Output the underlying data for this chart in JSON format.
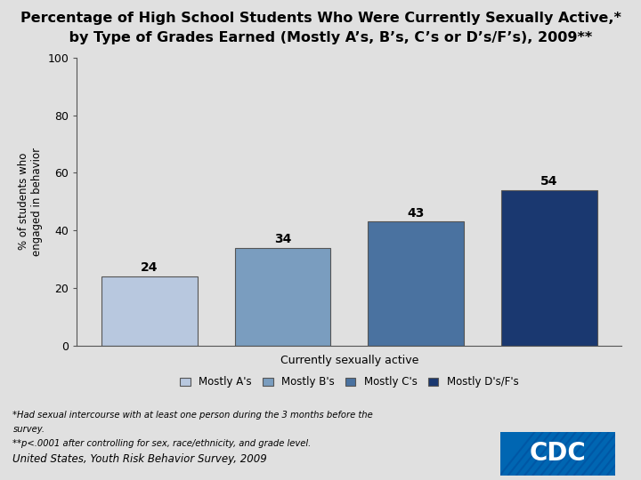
{
  "title_line1": "Percentage of High School Students Who Were Currently Sexually Active,*",
  "title_line2": "    by Type of Grades Earned (Mostly A’s, B’s, C’s or D’s/F’s), 2009**",
  "categories": [
    "Mostly A's",
    "Mostly B's",
    "Mostly C's",
    "Mostly D's/F's"
  ],
  "values": [
    24,
    34,
    43,
    54
  ],
  "bar_colors": [
    "#b8c8df",
    "#7a9dbf",
    "#4a72a0",
    "#1a3870"
  ],
  "xlabel": "Currently sexually active",
  "ylabel": "% of students who\nengaged in behavior",
  "ylim": [
    0,
    100
  ],
  "yticks": [
    0,
    20,
    40,
    60,
    80,
    100
  ],
  "background_color": "#e0e0e0",
  "plot_bg_color": "#e0e0e0",
  "footnote1": "*Had sexual intercourse with at least one person during the 3 months before the",
  "footnote2": "survey.",
  "footnote3": "**p<.0001 after controlling for sex, race/ethnicity, and grade level.",
  "footnote4": "United States, Youth Risk Behavior Survey, 2009",
  "title_fontsize": 11.5,
  "value_fontsize": 10,
  "legend_labels": [
    "Mostly A's",
    "Mostly B's",
    "Mostly C's",
    "Mostly D's/F's"
  ],
  "bar_edge_color": "#555555",
  "bar_edge_width": 0.8
}
